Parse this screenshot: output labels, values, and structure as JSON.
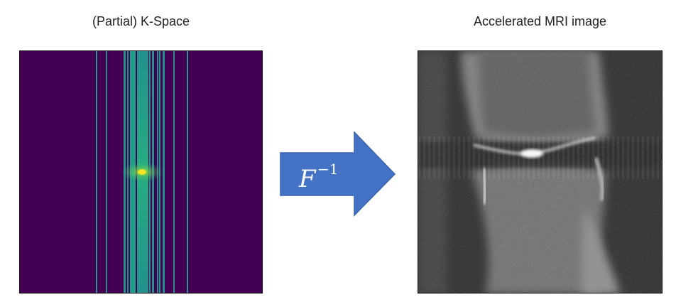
{
  "diagram": {
    "left_title": "(Partial) K-Space",
    "right_title": "Accelerated MRI image",
    "arrow_label_base": "F",
    "arrow_label_exponent": "−1"
  },
  "colors": {
    "kspace_background": "#440154",
    "kspace_line": "#2a8f8c",
    "kspace_line_dense": "#1f9e89",
    "kspace_center": "#b5de2b",
    "arrow_fill": "#4472c4",
    "arrow_stroke": "#3a63ad",
    "mri_background": "#202020"
  },
  "icons": {
    "kspace": "kspace-image",
    "mri": "knee-mri-image",
    "arrow": "right-arrow"
  }
}
